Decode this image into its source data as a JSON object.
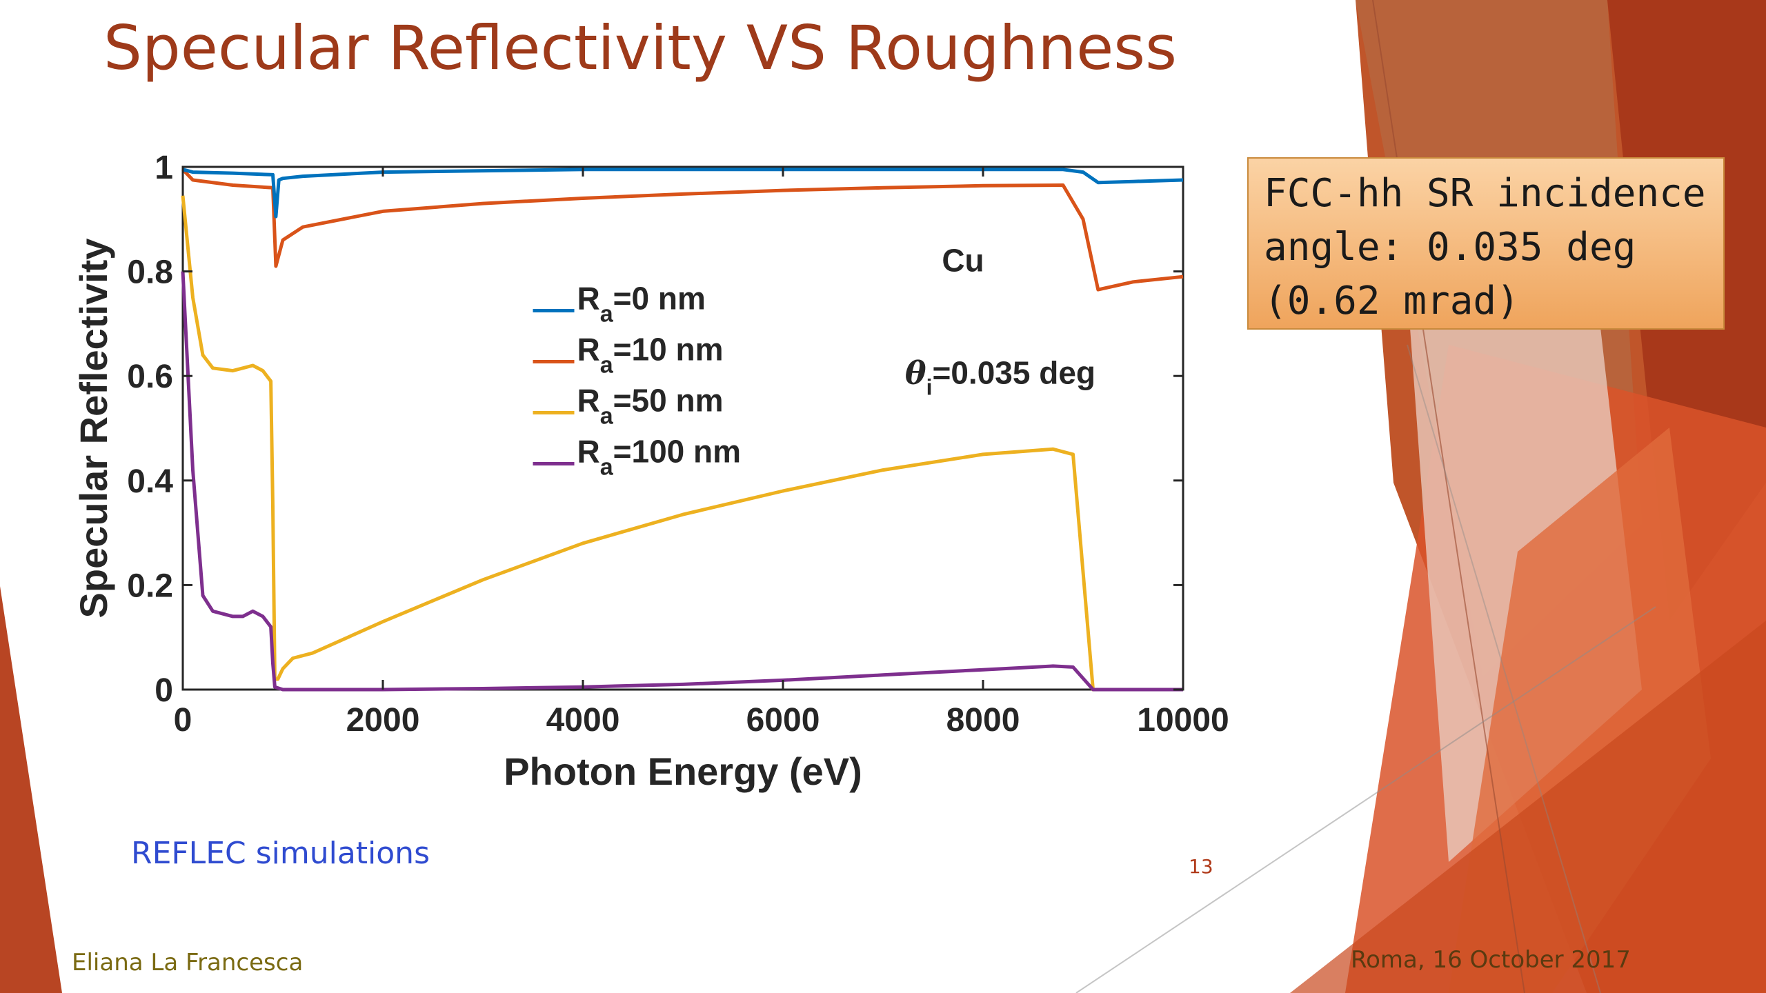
{
  "slide": {
    "title": "Specular Reflectivity VS Roughness",
    "callout": [
      "FCC-hh SR incidence",
      "angle: 0.035 deg",
      "(0.62 mrad)"
    ],
    "note": "REFLEC simulations",
    "page_number": "13",
    "author": "Eliana La Francesca",
    "date": "Roma, 16 October 2017"
  },
  "chart_data": {
    "type": "line",
    "xlabel": "Photon Energy (eV)",
    "ylabel": "Specular Reflectivity",
    "xlim": [
      0,
      10000
    ],
    "ylim": [
      0,
      1
    ],
    "xticks": [
      "0",
      "2000",
      "4000",
      "6000",
      "8000",
      "10000"
    ],
    "yticks": [
      "0",
      "0.2",
      "0.4",
      "0.6",
      "0.8",
      "1"
    ],
    "material": "Cu",
    "angle_label": "=0.035 deg",
    "legend_position": "center-left",
    "series": [
      {
        "name": "R_a=0 nm",
        "legend_base": "R",
        "legend_sub": "a",
        "legend_rest": "=0 nm",
        "color": "#0072bd",
        "x": [
          0,
          100,
          500,
          900,
          930,
          960,
          1000,
          1200,
          2000,
          4000,
          6000,
          8000,
          8800,
          9000,
          9150,
          9500,
          10000
        ],
        "y": [
          0.995,
          0.99,
          0.988,
          0.985,
          0.905,
          0.975,
          0.978,
          0.982,
          0.99,
          0.995,
          0.995,
          0.995,
          0.995,
          0.99,
          0.97,
          0.972,
          0.975
        ]
      },
      {
        "name": "R_a=10 nm",
        "legend_base": "R",
        "legend_sub": "a",
        "legend_rest": "=10 nm",
        "color": "#d95319",
        "x": [
          0,
          100,
          500,
          900,
          930,
          1000,
          1200,
          2000,
          3000,
          4000,
          5000,
          6000,
          7000,
          8000,
          8800,
          9000,
          9150,
          9500,
          10000
        ],
        "y": [
          0.995,
          0.975,
          0.965,
          0.96,
          0.81,
          0.86,
          0.885,
          0.915,
          0.93,
          0.94,
          0.948,
          0.955,
          0.96,
          0.964,
          0.965,
          0.9,
          0.765,
          0.78,
          0.79
        ]
      },
      {
        "name": "R_a=50 nm",
        "legend_base": "R",
        "legend_sub": "a",
        "legend_rest": "=50 nm",
        "color": "#edb120",
        "x": [
          0,
          100,
          200,
          300,
          500,
          600,
          700,
          800,
          880,
          900,
          920,
          950,
          1000,
          1100,
          1300,
          2000,
          3000,
          4000,
          5000,
          6000,
          7000,
          8000,
          8700,
          8900,
          9100,
          9500,
          10000
        ],
        "y": [
          0.945,
          0.75,
          0.64,
          0.615,
          0.61,
          0.615,
          0.62,
          0.61,
          0.59,
          0.35,
          0.02,
          0.02,
          0.04,
          0.06,
          0.07,
          0.13,
          0.21,
          0.28,
          0.335,
          0.38,
          0.42,
          0.45,
          0.46,
          0.45,
          0.0,
          0.0,
          0.0
        ],
        "comment_x_type": "auto"
      },
      {
        "name": "R_a=100 nm",
        "legend_base": "R",
        "legend_sub": "a",
        "legend_rest": "=100 nm",
        "color": "#7e2f8e",
        "x": [
          0,
          100,
          200,
          300,
          500,
          600,
          700,
          800,
          880,
          900,
          920,
          1000,
          2000,
          3000,
          4000,
          5000,
          6000,
          7000,
          8000,
          8700,
          8900,
          9100,
          9500,
          10000
        ],
        "y": [
          0.8,
          0.42,
          0.18,
          0.15,
          0.14,
          0.14,
          0.15,
          0.14,
          0.12,
          0.05,
          0.005,
          0.0,
          0.0,
          0.002,
          0.005,
          0.01,
          0.018,
          0.028,
          0.038,
          0.045,
          0.043,
          0.0,
          0.0,
          0.0
        ]
      }
    ]
  }
}
